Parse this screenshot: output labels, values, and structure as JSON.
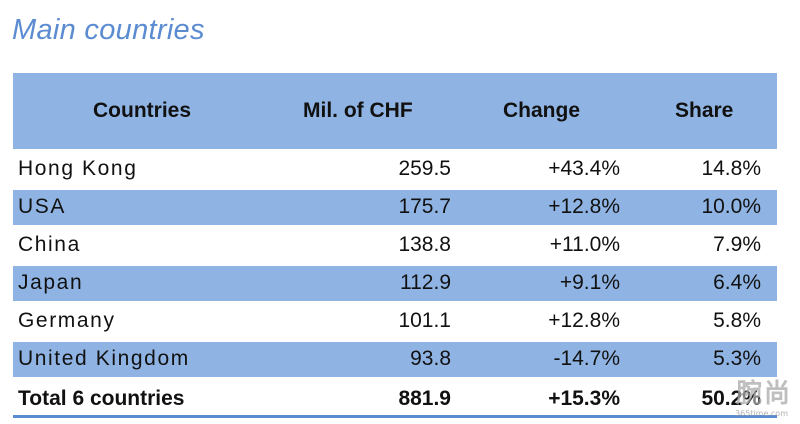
{
  "title": "Main countries",
  "header": {
    "country": "Countries",
    "value": "Mil. of CHF",
    "change": "Change",
    "share": "Share"
  },
  "rows": [
    {
      "country": "Hong Kong",
      "value": "259.5",
      "change": "+43.4%",
      "share": "14.8%"
    },
    {
      "country": "USA",
      "value": "175.7",
      "change": "+12.8%",
      "share": "10.0%"
    },
    {
      "country": "China",
      "value": "138.8",
      "change": "+11.0%",
      "share": "7.9%"
    },
    {
      "country": "Japan",
      "value": "112.9",
      "change": "+9.1%",
      "share": "6.4%"
    },
    {
      "country": "Germany",
      "value": "101.1",
      "change": "+12.8%",
      "share": "5.8%"
    },
    {
      "country": "United Kingdom",
      "value": "93.8",
      "change": "-14.7%",
      "share": "5.3%"
    }
  ],
  "total": {
    "country": "Total 6 countries",
    "value": "881.9",
    "change": "+15.3%",
    "share": "50.2%"
  },
  "watermark": {
    "text": "腕尚",
    "sub": "365time.com"
  },
  "colors": {
    "accent": "#5b8bd0",
    "band": "#8fb4e3"
  }
}
